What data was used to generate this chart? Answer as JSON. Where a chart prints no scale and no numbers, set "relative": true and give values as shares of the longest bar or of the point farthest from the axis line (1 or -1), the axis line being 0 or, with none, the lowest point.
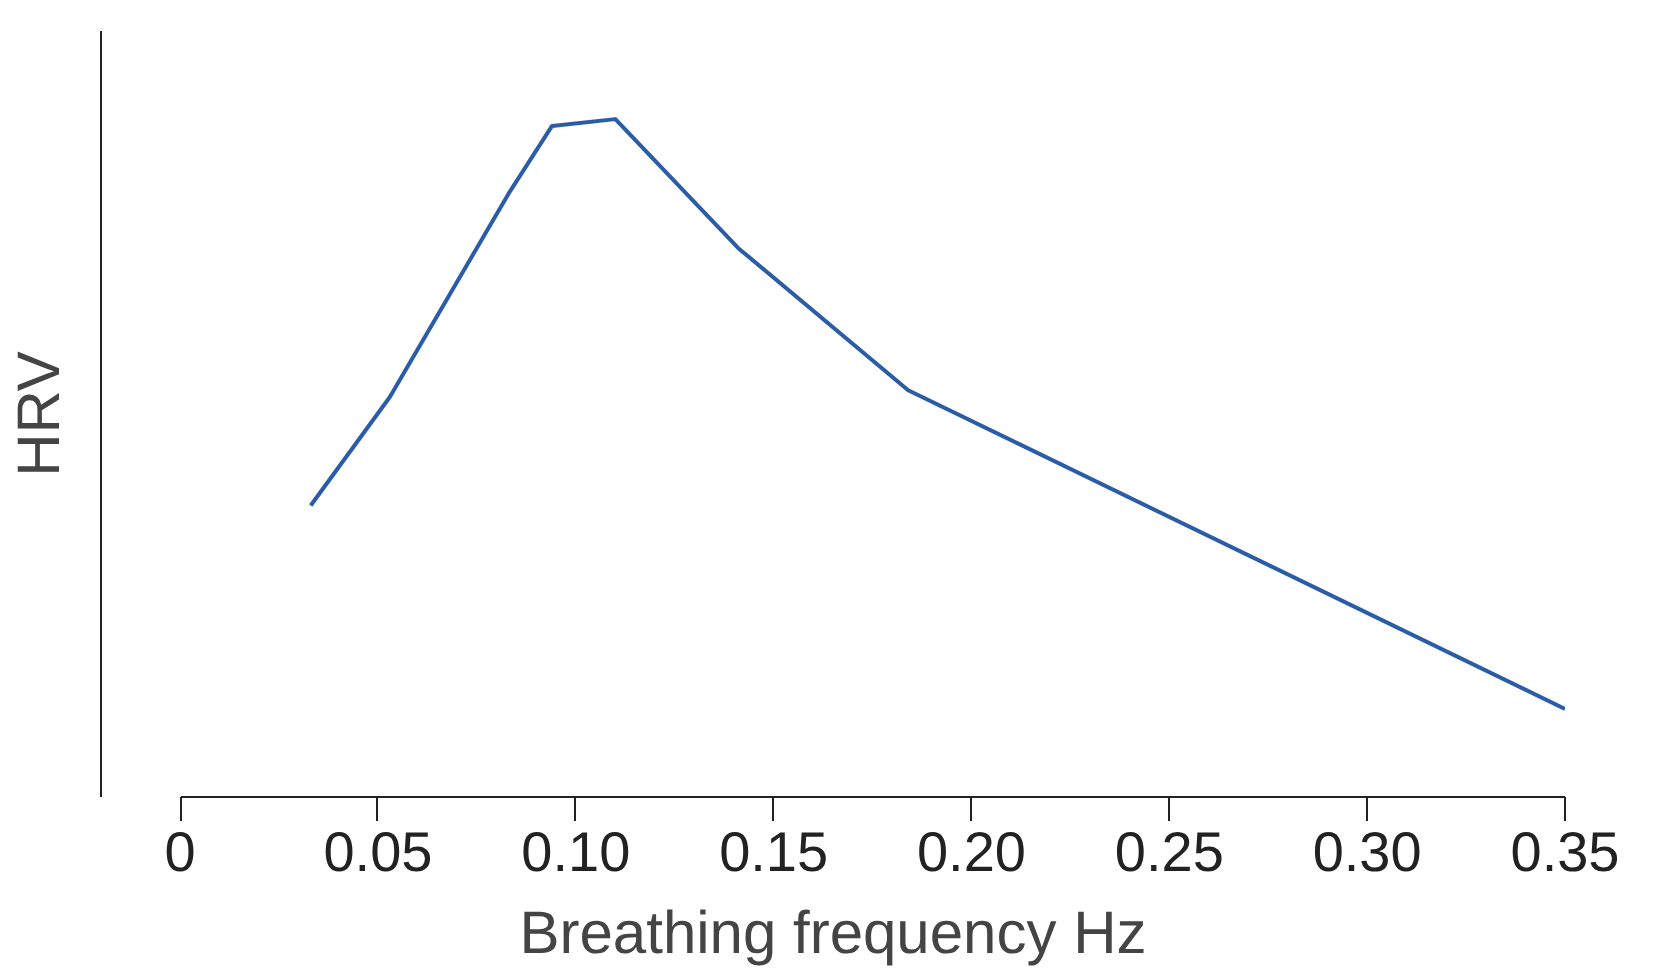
{
  "chart_data": {
    "type": "line",
    "xlabel": "Breathing frequency Hz",
    "ylabel": "HRV",
    "relative": true,
    "x": [
      0.033,
      0.053,
      0.083,
      0.094,
      0.11,
      0.141,
      0.184,
      0.35
    ],
    "series": [
      {
        "color": "#2a5ca8",
        "values": [
          0.43,
          0.59,
          0.89,
          0.99,
          1,
          0.81,
          0.6,
          0.13
        ]
      }
    ],
    "xlim": [
      -0.02,
      0.35
    ],
    "xticks": [
      0,
      0.05,
      {
        "value": 0.1,
        "label": "0.10"
      },
      0.15,
      {
        "value": 0.2,
        "label": "0.20"
      },
      0.25,
      {
        "value": 0.3,
        "label": "0.30"
      },
      0.35
    ],
    "grid": false,
    "marker": "none",
    "line_style": "solid"
  }
}
